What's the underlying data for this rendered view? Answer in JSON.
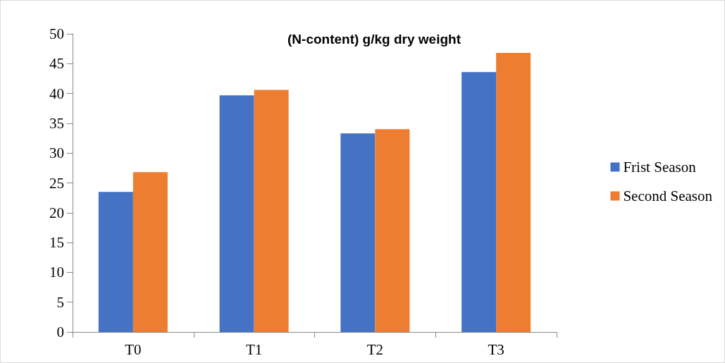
{
  "chart_data": {
    "type": "bar",
    "title": "(N-content) g/kg dry weight",
    "categories": [
      "T0",
      "T1",
      "T2",
      "T3"
    ],
    "series": [
      {
        "name": "Frist Season",
        "color": "#4472c4",
        "values": [
          23.5,
          39.7,
          33.3,
          43.6
        ]
      },
      {
        "name": "Second Season",
        "color": "#ed7d31",
        "values": [
          26.8,
          40.6,
          34.0,
          46.8
        ]
      }
    ],
    "ylim": [
      0,
      50
    ],
    "yticks": [
      0,
      5,
      10,
      15,
      20,
      25,
      30,
      35,
      40,
      45,
      50
    ],
    "grid": false,
    "legend": "right"
  }
}
